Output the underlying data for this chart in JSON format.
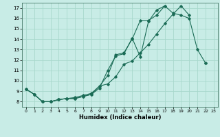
{
  "xlabel": "Humidex (Indice chaleur)",
  "bg_color": "#c8ece6",
  "grid_color": "#a8d8cc",
  "line_color": "#1a6b55",
  "xlim": [
    -0.5,
    23.5
  ],
  "ylim": [
    7.5,
    17.5
  ],
  "xticks": [
    0,
    1,
    2,
    3,
    4,
    5,
    6,
    7,
    8,
    9,
    10,
    11,
    12,
    13,
    14,
    15,
    16,
    17,
    18,
    19,
    20,
    21,
    22,
    23
  ],
  "yticks": [
    8,
    9,
    10,
    11,
    12,
    13,
    14,
    15,
    16,
    17
  ],
  "line1_y": [
    9.2,
    8.7,
    8.0,
    8.0,
    8.2,
    8.3,
    8.3,
    8.5,
    8.7,
    9.5,
    10.5,
    12.5,
    12.7,
    14.0,
    15.8,
    15.8,
    16.3,
    17.2,
    16.5,
    16.3,
    16.0,
    13.0,
    11.7,
    null
  ],
  "line2_y": [
    9.2,
    8.7,
    8.0,
    8.0,
    8.2,
    8.3,
    8.3,
    8.5,
    8.7,
    9.3,
    11.0,
    12.4,
    12.6,
    14.1,
    12.3,
    15.7,
    16.8,
    17.2,
    null,
    null,
    null,
    null,
    null,
    null
  ],
  "line3_y": [
    9.2,
    8.7,
    8.0,
    8.0,
    8.2,
    8.3,
    8.4,
    8.6,
    8.8,
    9.5,
    9.7,
    10.4,
    11.6,
    11.9,
    12.7,
    13.5,
    14.5,
    15.5,
    16.4,
    17.2,
    16.3,
    null,
    11.7,
    null
  ]
}
